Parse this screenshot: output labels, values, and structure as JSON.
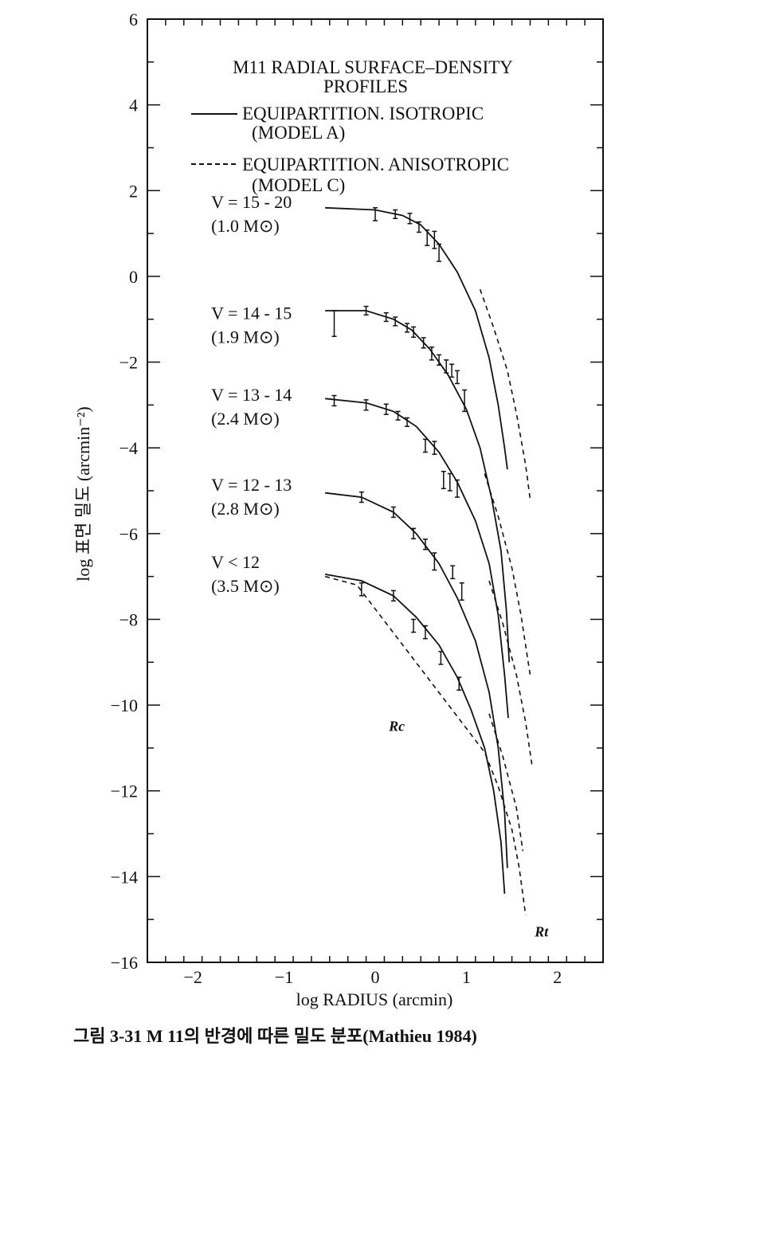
{
  "caption": "그림 3-31  M 11의 반경에 따른 밀도 분포(Mathieu 1984)",
  "colors": {
    "ink": "#111111",
    "background": "#ffffff"
  },
  "chart_data": {
    "type": "line",
    "title": "M11 RADIAL SURFACE–DENSITY PROFILES",
    "title_lines": [
      "M11 RADIAL SURFACE–DENSITY",
      "PROFILES"
    ],
    "xlabel": "log RADIUS (arcmin)",
    "ylabel": "log 표면 밀도 (arcmin⁻²)",
    "xlim": [
      -2.5,
      2.5
    ],
    "ylim": [
      -16,
      6
    ],
    "x_ticks": [
      -2,
      -1,
      0,
      1,
      2
    ],
    "x_tick_labels": [
      "−2",
      "−1",
      "0",
      "1",
      "2"
    ],
    "y_ticks": [
      6,
      4,
      2,
      0,
      -2,
      -4,
      -6,
      -8,
      -10,
      -12,
      -14,
      -16
    ],
    "y_tick_labels": [
      "6",
      "4",
      "2",
      "0",
      "−2",
      "−4",
      "−6",
      "−8",
      "−10",
      "−12",
      "−14",
      "−16"
    ],
    "grid": false,
    "legend": [
      {
        "style": "solid",
        "label_lines": [
          "EQUIPARTITION. ISOTROPIC",
          "(MODEL A)"
        ]
      },
      {
        "style": "dashed",
        "label_lines": [
          "EQUIPARTITION. ANISOTROPIC",
          "(MODEL C)"
        ]
      }
    ],
    "annotations": [
      {
        "text": "Rc",
        "x": 0.15,
        "y": -10.6
      },
      {
        "text": "Rt",
        "x": 1.75,
        "y": -15.4
      }
    ],
    "series": [
      {
        "label_lines": [
          "V = 15 - 20",
          "(1.0 M⊙)"
        ],
        "label_pos": {
          "x": -1.8,
          "y": 1.6
        },
        "model_a": [
          [
            -0.55,
            1.6
          ],
          [
            0,
            1.55
          ],
          [
            0.3,
            1.42
          ],
          [
            0.5,
            1.2
          ],
          [
            0.7,
            0.75
          ],
          [
            0.9,
            0.1
          ],
          [
            1.1,
            -0.8
          ],
          [
            1.25,
            -1.9
          ],
          [
            1.35,
            -3.0
          ],
          [
            1.42,
            -4.0
          ],
          [
            1.45,
            -4.5
          ]
        ],
        "model_c": [
          [
            1.15,
            -0.3
          ],
          [
            1.3,
            -1.2
          ],
          [
            1.45,
            -2.2
          ],
          [
            1.55,
            -3.2
          ],
          [
            1.65,
            -4.4
          ],
          [
            1.7,
            -5.2
          ]
        ],
        "points": [
          [
            0,
            1.45,
            0.15
          ],
          [
            0.22,
            1.45,
            0.1
          ],
          [
            0.38,
            1.35,
            0.12
          ],
          [
            0.48,
            1.15,
            0.12
          ],
          [
            0.57,
            0.9,
            0.18
          ],
          [
            0.65,
            0.85,
            0.2
          ],
          [
            0.7,
            0.55,
            0.2
          ]
        ]
      },
      {
        "label_lines": [
          "V = 14 - 15",
          "(1.9 M⊙)"
        ],
        "label_pos": {
          "x": -1.8,
          "y": -1.0
        },
        "model_a": [
          [
            -0.55,
            -0.8
          ],
          [
            -0.1,
            -0.8
          ],
          [
            0.2,
            -1.0
          ],
          [
            0.4,
            -1.25
          ],
          [
            0.6,
            -1.7
          ],
          [
            0.8,
            -2.3
          ],
          [
            1.0,
            -3.1
          ],
          [
            1.15,
            -4.0
          ],
          [
            1.28,
            -5.2
          ],
          [
            1.38,
            -6.4
          ],
          [
            1.44,
            -7.8
          ],
          [
            1.47,
            -9.0
          ]
        ],
        "model_c": [
          [
            1.2,
            -4.6
          ],
          [
            1.35,
            -5.6
          ],
          [
            1.5,
            -6.8
          ],
          [
            1.6,
            -7.9
          ],
          [
            1.7,
            -9.3
          ]
        ],
        "points": [
          [
            -0.45,
            -1.1,
            0.3
          ],
          [
            -0.1,
            -0.8,
            0.1
          ],
          [
            0.12,
            -0.95,
            0.1
          ],
          [
            0.22,
            -1.05,
            0.1
          ],
          [
            0.35,
            -1.2,
            0.1
          ],
          [
            0.42,
            -1.3,
            0.12
          ],
          [
            0.53,
            -1.55,
            0.12
          ],
          [
            0.62,
            -1.8,
            0.15
          ],
          [
            0.7,
            -1.95,
            0.12
          ],
          [
            0.78,
            -2.1,
            0.15
          ],
          [
            0.84,
            -2.2,
            0.15
          ],
          [
            0.9,
            -2.35,
            0.15
          ],
          [
            0.98,
            -2.9,
            0.25
          ]
        ]
      },
      {
        "label_lines": [
          "V = 13 - 14",
          "(2.4 M⊙)"
        ],
        "label_pos": {
          "x": -1.8,
          "y": -2.9
        },
        "model_a": [
          [
            -0.55,
            -2.85
          ],
          [
            -0.1,
            -2.95
          ],
          [
            0.2,
            -3.15
          ],
          [
            0.45,
            -3.5
          ],
          [
            0.7,
            -4.1
          ],
          [
            0.9,
            -4.8
          ],
          [
            1.1,
            -5.7
          ],
          [
            1.25,
            -6.7
          ],
          [
            1.35,
            -7.9
          ],
          [
            1.42,
            -9.3
          ],
          [
            1.46,
            -10.3
          ]
        ],
        "model_c": [
          [
            1.25,
            -7.1
          ],
          [
            1.4,
            -8.1
          ],
          [
            1.55,
            -9.3
          ],
          [
            1.65,
            -10.4
          ],
          [
            1.72,
            -11.4
          ]
        ],
        "points": [
          [
            -0.45,
            -2.9,
            0.12
          ],
          [
            -0.1,
            -3.0,
            0.12
          ],
          [
            0.12,
            -3.1,
            0.12
          ],
          [
            0.25,
            -3.25,
            0.1
          ],
          [
            0.35,
            -3.4,
            0.1
          ],
          [
            0.55,
            -3.95,
            0.15
          ],
          [
            0.65,
            -4.0,
            0.15
          ],
          [
            0.75,
            -4.75,
            0.2
          ],
          [
            0.82,
            -4.8,
            0.2
          ],
          [
            0.9,
            -4.95,
            0.2
          ]
        ]
      },
      {
        "label_lines": [
          "V = 12 - 13",
          "(2.8 M⊙)"
        ],
        "label_pos": {
          "x": -1.8,
          "y": -5.0
        },
        "model_a": [
          [
            -0.55,
            -5.05
          ],
          [
            -0.15,
            -5.15
          ],
          [
            0.2,
            -5.5
          ],
          [
            0.45,
            -6.0
          ],
          [
            0.7,
            -6.7
          ],
          [
            0.9,
            -7.5
          ],
          [
            1.1,
            -8.5
          ],
          [
            1.25,
            -9.7
          ],
          [
            1.35,
            -11.0
          ],
          [
            1.42,
            -12.5
          ],
          [
            1.45,
            -13.8
          ]
        ],
        "model_c": [
          [
            1.25,
            -10.2
          ],
          [
            1.4,
            -11.2
          ],
          [
            1.55,
            -12.4
          ],
          [
            1.62,
            -13.4
          ]
        ],
        "points": [
          [
            -0.15,
            -5.15,
            0.12
          ],
          [
            0.2,
            -5.5,
            0.12
          ],
          [
            0.42,
            -6.0,
            0.12
          ],
          [
            0.55,
            -6.25,
            0.12
          ],
          [
            0.65,
            -6.65,
            0.2
          ],
          [
            0.85,
            -6.9,
            0.15
          ],
          [
            0.95,
            -7.35,
            0.2
          ]
        ]
      },
      {
        "label_lines": [
          "V < 12",
          "(3.5 M⊙)"
        ],
        "label_pos": {
          "x": -1.8,
          "y": -6.8
        },
        "model_a": [
          [
            -0.55,
            -6.95
          ],
          [
            -0.15,
            -7.1
          ],
          [
            0.2,
            -7.45
          ],
          [
            0.45,
            -7.95
          ],
          [
            0.7,
            -8.6
          ],
          [
            0.9,
            -9.35
          ],
          [
            1.05,
            -10.1
          ],
          [
            1.2,
            -11.0
          ],
          [
            1.3,
            -12.0
          ],
          [
            1.38,
            -13.2
          ],
          [
            1.42,
            -14.4
          ]
        ],
        "model_c": [
          [
            -0.55,
            -7.0
          ],
          [
            -0.2,
            -7.2
          ],
          [
            1.2,
            -11.1
          ],
          [
            1.35,
            -11.9
          ],
          [
            1.5,
            -12.9
          ],
          [
            1.58,
            -13.8
          ],
          [
            1.65,
            -14.9
          ]
        ],
        "points": [
          [
            -0.15,
            -7.3,
            0.15
          ],
          [
            0.2,
            -7.45,
            0.12
          ],
          [
            0.42,
            -8.15,
            0.15
          ],
          [
            0.55,
            -8.3,
            0.15
          ],
          [
            0.72,
            -8.9,
            0.15
          ],
          [
            0.92,
            -9.5,
            0.15
          ]
        ]
      }
    ]
  }
}
